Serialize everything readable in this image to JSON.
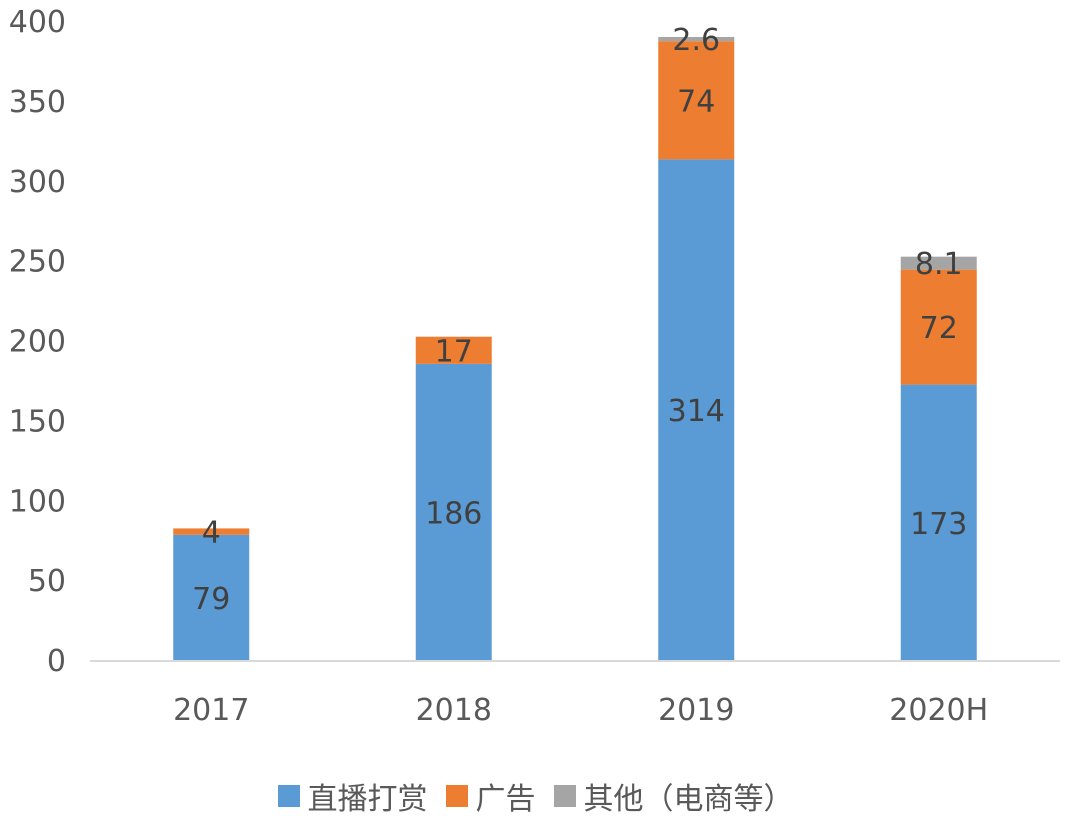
{
  "chart_data": {
    "type": "bar",
    "stacked": true,
    "categories": [
      "2017",
      "2018",
      "2019",
      "2020H"
    ],
    "series": [
      {
        "name": "直播打赏",
        "color": "#5B9BD5",
        "values": [
          79,
          186,
          314,
          173
        ],
        "labels": [
          "79",
          "186",
          "314",
          "173"
        ]
      },
      {
        "name": "广告",
        "color": "#ED7D31",
        "values": [
          4,
          17,
          74,
          72
        ],
        "labels": [
          "4",
          "17",
          "74",
          "72"
        ]
      },
      {
        "name": "其他（电商等）",
        "color": "#A5A5A5",
        "values": [
          0,
          0,
          2.6,
          8.1
        ],
        "labels": [
          "",
          "",
          "2.6",
          "8.1"
        ]
      }
    ],
    "yticks": [
      "0",
      "50",
      "100",
      "150",
      "200",
      "250",
      "300",
      "350",
      "400"
    ],
    "ylim": [
      0,
      400
    ],
    "grid": false,
    "legend_position": "bottom"
  }
}
